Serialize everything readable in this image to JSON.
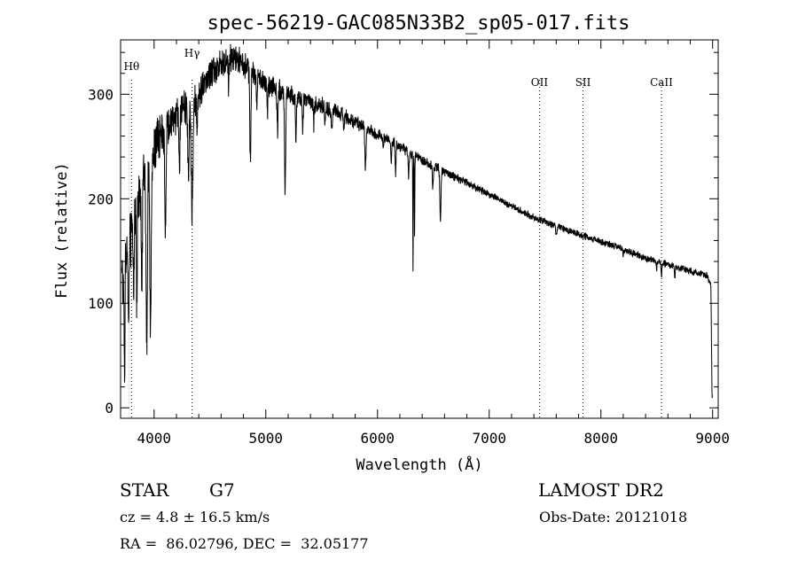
{
  "chart_data": {
    "type": "line",
    "title": "spec-56219-GAC085N33B2_sp05-017.fits",
    "xlabel": "Wavelength (Å)",
    "ylabel": "Flux (relative)",
    "xlim": [
      3700,
      9050
    ],
    "ylim": [
      -10,
      352
    ],
    "xticks": [
      4000,
      5000,
      6000,
      7000,
      8000,
      9000
    ],
    "yticks": [
      0,
      100,
      200,
      300
    ],
    "spectral_lines": [
      {
        "name": "Hθ",
        "wavelength": 3798
      },
      {
        "name": "Hγ",
        "wavelength": 4340
      },
      {
        "name": "OII",
        "wavelength": 7450
      },
      {
        "name": "SII",
        "wavelength": 7840
      },
      {
        "name": "CaII",
        "wavelength": 8542
      }
    ],
    "continuum": [
      [
        3720,
        130
      ],
      [
        3800,
        165
      ],
      [
        3900,
        215
      ],
      [
        4000,
        250
      ],
      [
        4100,
        268
      ],
      [
        4200,
        278
      ],
      [
        4300,
        288
      ],
      [
        4400,
        300
      ],
      [
        4500,
        318
      ],
      [
        4600,
        328
      ],
      [
        4700,
        334
      ],
      [
        4800,
        330
      ],
      [
        4900,
        318
      ],
      [
        5000,
        310
      ],
      [
        5200,
        300
      ],
      [
        5400,
        293
      ],
      [
        5600,
        285
      ],
      [
        5800,
        273
      ],
      [
        6000,
        262
      ],
      [
        6200,
        250
      ],
      [
        6400,
        237
      ],
      [
        6600,
        226
      ],
      [
        6800,
        215
      ],
      [
        7000,
        204
      ],
      [
        7200,
        193
      ],
      [
        7400,
        182
      ],
      [
        7600,
        174
      ],
      [
        7800,
        166
      ],
      [
        8000,
        159
      ],
      [
        8200,
        152
      ],
      [
        8400,
        143
      ],
      [
        8600,
        137
      ],
      [
        8800,
        131
      ],
      [
        8950,
        126
      ],
      [
        8985,
        118
      ],
      [
        8995,
        10
      ]
    ],
    "absorption_features": [
      [
        3735,
        100,
        4
      ],
      [
        3770,
        80,
        4
      ],
      [
        3815,
        60,
        5
      ],
      [
        3845,
        85,
        4
      ],
      [
        3890,
        90,
        5
      ],
      [
        3934,
        170,
        6
      ],
      [
        3968,
        165,
        6
      ],
      [
        4101,
        90,
        6
      ],
      [
        4227,
        55,
        4
      ],
      [
        4307,
        65,
        6
      ],
      [
        4340,
        105,
        8
      ],
      [
        4384,
        30,
        4
      ],
      [
        4668,
        25,
        4
      ],
      [
        4861,
        90,
        5
      ],
      [
        4920,
        25,
        4
      ],
      [
        5015,
        30,
        4
      ],
      [
        5105,
        40,
        5
      ],
      [
        5173,
        95,
        5
      ],
      [
        5270,
        40,
        4
      ],
      [
        5330,
        30,
        4
      ],
      [
        5430,
        20,
        4
      ],
      [
        5530,
        20,
        4
      ],
      [
        5590,
        20,
        5
      ],
      [
        5700,
        15,
        4
      ],
      [
        5892,
        40,
        5
      ],
      [
        6050,
        12,
        4
      ],
      [
        6122,
        20,
        4
      ],
      [
        6162,
        28,
        4
      ],
      [
        6279,
        22,
        4
      ],
      [
        6318,
        115,
        2
      ],
      [
        6332,
        78,
        2
      ],
      [
        6495,
        20,
        4
      ],
      [
        6563,
        48,
        5
      ],
      [
        7600,
        6,
        6
      ],
      [
        8200,
        6,
        4
      ],
      [
        8498,
        10,
        3
      ],
      [
        8542,
        14,
        3
      ],
      [
        8662,
        12,
        3
      ]
    ],
    "noise": [
      [
        3700,
        30
      ],
      [
        4000,
        20
      ],
      [
        4400,
        15
      ],
      [
        5000,
        9
      ],
      [
        6000,
        5
      ],
      [
        7000,
        3
      ],
      [
        9000,
        3
      ]
    ],
    "x_range": [
      3710,
      9000
    ],
    "step": 2
  },
  "info": {
    "object_class": "STAR",
    "subclass": "G7",
    "survey": "LAMOST DR2",
    "redshift": "cz = 4.8 ± 16.5 km/s",
    "obs_date": "Obs-Date: 20121018",
    "coords": "RA =  86.02796, DEC =  32.05177"
  }
}
